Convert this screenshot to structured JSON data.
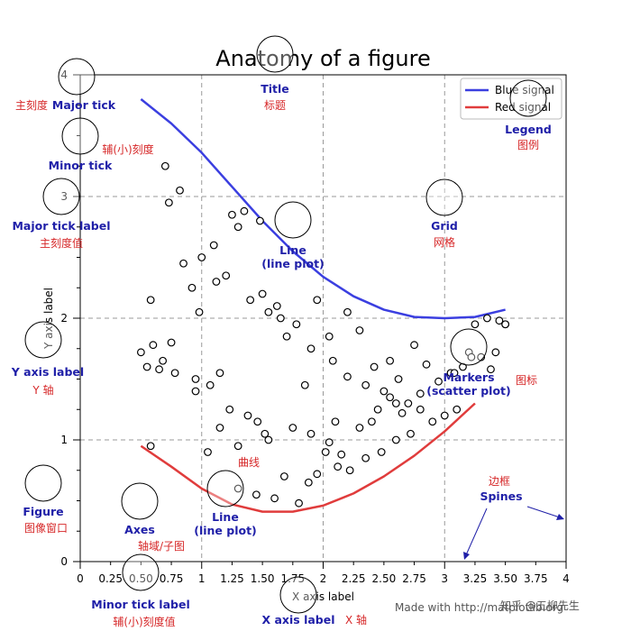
{
  "chart_data": {
    "type": "line",
    "title": "Anatomy of a figure",
    "xlabel": "X axis label",
    "ylabel": "Y axis label",
    "xlim": [
      0,
      4
    ],
    "ylim": [
      0,
      4
    ],
    "grid": true,
    "legend_placement": "top-right",
    "legend": [
      "Blue signal",
      "Red signal"
    ],
    "x_ticks": [
      "0",
      "0.25",
      "0.50",
      "0.75",
      "1",
      "1.25",
      "1.50",
      "1.75",
      "2",
      "2.25",
      "2.50",
      "2.75",
      "3",
      "3.25",
      "3.50",
      "3.75",
      "4"
    ],
    "y_ticks": [
      "0",
      "1",
      "2",
      "3",
      "4"
    ],
    "series": [
      {
        "name": "Blue signal",
        "color": "#3b3fe0",
        "x": [
          0.5,
          0.75,
          1.0,
          1.25,
          1.5,
          1.75,
          2.0,
          2.25,
          2.5,
          2.75,
          3.0,
          3.25,
          3.5
        ],
        "y": [
          3.8,
          3.6,
          3.36,
          3.08,
          2.8,
          2.55,
          2.34,
          2.18,
          2.07,
          2.01,
          2.0,
          2.01,
          2.07
        ]
      },
      {
        "name": "Red signal",
        "color": "#e03c3c",
        "x": [
          0.5,
          0.75,
          1.0,
          1.25,
          1.5,
          1.75,
          2.0,
          2.25,
          2.5,
          2.75,
          3.0,
          3.25
        ],
        "y": [
          0.95,
          0.78,
          0.6,
          0.47,
          0.41,
          0.41,
          0.46,
          0.56,
          0.7,
          0.87,
          1.07,
          1.3
        ]
      },
      {
        "name": "",
        "type": "scatter",
        "x": [
          0.7,
          0.82,
          0.73,
          0.58,
          0.6,
          0.68,
          0.85,
          0.92,
          0.98,
          1.12,
          1.25,
          1.3,
          1.35,
          1.48,
          1.5,
          1.62,
          1.65,
          1.78,
          1.85,
          1.95,
          2.05,
          2.2,
          2.3,
          2.42,
          2.55,
          2.62,
          2.7,
          2.8,
          0.5,
          0.55,
          0.65,
          0.78,
          0.95,
          1.07,
          1.15,
          1.23,
          1.38,
          1.46,
          1.52,
          1.68,
          1.88,
          2.02,
          2.12,
          2.22,
          2.35,
          2.48,
          2.6,
          2.72,
          2.9,
          3.0,
          3.1,
          3.15,
          3.25,
          3.35,
          3.45,
          3.5,
          0.58,
          1.15,
          1.3,
          1.55,
          1.75,
          1.9,
          2.1,
          2.3,
          2.45,
          2.6,
          0.75,
          0.95,
          1.05,
          1.3,
          1.45,
          1.6,
          1.8,
          1.95,
          2.05,
          2.15,
          2.4,
          2.55,
          2.75,
          2.85,
          3.05,
          3.2,
          3.3,
          3.42,
          3.5,
          1.0,
          1.1,
          1.2,
          1.4,
          1.55,
          1.7,
          1.9,
          2.08,
          2.2,
          2.35,
          2.5,
          2.65,
          2.8,
          2.95,
          3.08,
          3.22,
          3.38
        ],
        "y": [
          3.25,
          3.05,
          2.95,
          2.15,
          1.78,
          1.65,
          2.45,
          2.25,
          2.05,
          2.3,
          2.85,
          2.75,
          2.88,
          2.8,
          2.2,
          2.1,
          2.0,
          1.95,
          1.45,
          2.15,
          1.85,
          2.05,
          1.9,
          1.6,
          1.65,
          1.5,
          1.3,
          1.25,
          1.72,
          1.6,
          1.58,
          1.55,
          1.5,
          1.45,
          1.55,
          1.25,
          1.2,
          1.15,
          1.05,
          0.7,
          0.65,
          0.9,
          0.78,
          0.75,
          0.85,
          0.9,
          1.0,
          1.05,
          1.15,
          1.2,
          1.25,
          1.6,
          1.95,
          2.0,
          1.98,
          1.95,
          0.95,
          1.1,
          0.95,
          1.0,
          1.1,
          1.05,
          1.15,
          1.1,
          1.25,
          1.3,
          1.8,
          1.4,
          0.9,
          0.6,
          0.55,
          0.52,
          0.48,
          0.72,
          0.98,
          0.88,
          1.15,
          1.35,
          1.78,
          1.62,
          1.55,
          1.72,
          1.68,
          1.72,
          1.95,
          2.5,
          2.6,
          2.35,
          2.15,
          2.05,
          1.85,
          1.75,
          1.65,
          1.52,
          1.45,
          1.4,
          1.22,
          1.38,
          1.48,
          1.55,
          1.68,
          1.58
        ]
      }
    ]
  },
  "annotations": [
    {
      "en": "Title",
      "zh": "标题"
    },
    {
      "en": "Major tick",
      "zh": "主刻度"
    },
    {
      "en": "Minor tick",
      "zh": "辅(小)刻度"
    },
    {
      "en": "Major tick label",
      "zh": "主刻度值"
    },
    {
      "en": "Legend",
      "zh": "图例"
    },
    {
      "en": "Grid",
      "zh": "网格"
    },
    {
      "en": "Line\n(line plot)",
      "zh": ""
    },
    {
      "en": "Y axis label",
      "zh": "Y 轴"
    },
    {
      "en": "Markers\n(scatter plot)",
      "zh": "图标"
    },
    {
      "en": "Figure",
      "zh": "图像窗口"
    },
    {
      "en": "Axes",
      "zh": "轴域/子图"
    },
    {
      "en": "Line\n(line plot)",
      "zh": "曲线"
    },
    {
      "en": "Spines",
      "zh": "边框"
    },
    {
      "en": "Minor tick label",
      "zh": "辅(小)刻度值"
    },
    {
      "en": "X axis label",
      "zh": "X 轴"
    }
  ],
  "credit": "Made with http://matplotlib.org",
  "watermark": "知乎 @五柳先生",
  "colors": {
    "annotation_en": "#1f1fa8",
    "annotation_zh": "#d62728",
    "grid": "#999999",
    "blue_signal": "#3b3fe0",
    "red_signal": "#e03c3c"
  }
}
